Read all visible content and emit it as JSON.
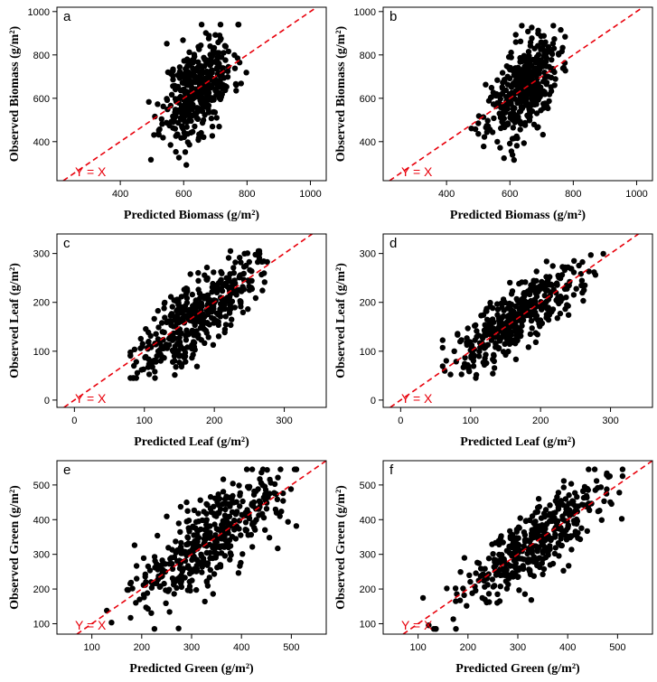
{
  "figure": {
    "ref_line_color": "#e8000b",
    "point_color": "#000000"
  },
  "chart_data": [
    {
      "type": "scatter",
      "panel": "a",
      "xlabel": "Predicted Biomass (g/m²)",
      "ylabel": "Observed Biomass (g/m²)",
      "xlim": [
        200,
        1050
      ],
      "ylim": [
        220,
        1020
      ],
      "xticks": [
        400,
        600,
        800,
        1000
      ],
      "yticks": [
        400,
        600,
        800,
        1000
      ],
      "annotation": "Y = X",
      "reference_line": "y = x",
      "grid": false,
      "x_center": 645,
      "x_sd": 55,
      "y_sd": 105,
      "slope": 1.0,
      "n": 420,
      "x_range": [
        400,
        800
      ],
      "y_range": [
        290,
        940
      ],
      "seed": 11
    },
    {
      "type": "scatter",
      "panel": "b",
      "xlabel": "Predicted Biomass (g/m²)",
      "ylabel": "Observed Biomass (g/m²)",
      "xlim": [
        200,
        1050
      ],
      "ylim": [
        220,
        1020
      ],
      "xticks": [
        400,
        600,
        800,
        1000
      ],
      "yticks": [
        400,
        600,
        800,
        1000
      ],
      "annotation": "Y = X",
      "reference_line": "y = x",
      "grid": false,
      "x_center": 640,
      "x_sd": 55,
      "y_sd": 100,
      "slope": 1.05,
      "n": 420,
      "x_range": [
        400,
        775
      ],
      "y_range": [
        290,
        935
      ],
      "seed": 23
    },
    {
      "type": "scatter",
      "panel": "c",
      "xlabel": "Predicted Leaf (g/m²)",
      "ylabel": "Observed Leaf (g/m²)",
      "xlim": [
        -25,
        360
      ],
      "ylim": [
        -15,
        340
      ],
      "xticks": [
        0,
        100,
        200,
        300
      ],
      "yticks": [
        0,
        100,
        200,
        300
      ],
      "annotation": "Y = X",
      "reference_line": "y = x",
      "grid": false,
      "x_center": 175,
      "x_sd": 42,
      "y_sd": 38,
      "slope": 1.05,
      "n": 420,
      "x_range": [
        80,
        280
      ],
      "y_range": [
        45,
        305
      ],
      "seed": 37
    },
    {
      "type": "scatter",
      "panel": "d",
      "xlabel": "Predicted Leaf (g/m²)",
      "ylabel": "Observed Leaf (g/m²)",
      "xlim": [
        -25,
        360
      ],
      "ylim": [
        -15,
        340
      ],
      "xticks": [
        0,
        100,
        200,
        300
      ],
      "yticks": [
        0,
        100,
        200,
        300
      ],
      "annotation": "Y = X",
      "reference_line": "y = x",
      "grid": false,
      "x_center": 170,
      "x_sd": 45,
      "y_sd": 32,
      "slope": 1.0,
      "n": 420,
      "x_range": [
        60,
        300
      ],
      "y_range": [
        45,
        305
      ],
      "seed": 51
    },
    {
      "type": "scatter",
      "panel": "e",
      "xlabel": "Predicted Green (g/m²)",
      "ylabel": "Observed Green (g/m²)",
      "xlim": [
        30,
        570
      ],
      "ylim": [
        70,
        570
      ],
      "xticks": [
        100,
        200,
        300,
        400,
        500
      ],
      "yticks": [
        100,
        200,
        300,
        400,
        500
      ],
      "annotation": "Y = X",
      "reference_line": "y = x",
      "grid": false,
      "x_center": 330,
      "x_sd": 70,
      "y_sd": 60,
      "slope": 1.0,
      "n": 420,
      "x_range": [
        130,
        510
      ],
      "y_range": [
        85,
        545
      ],
      "seed": 67
    },
    {
      "type": "scatter",
      "panel": "f",
      "xlabel": "Predicted Green (g/m²)",
      "ylabel": "Observed Green (g/m²)",
      "xlim": [
        30,
        570
      ],
      "ylim": [
        70,
        570
      ],
      "xticks": [
        100,
        200,
        300,
        400,
        500
      ],
      "yticks": [
        100,
        200,
        300,
        400,
        500
      ],
      "annotation": "Y = X",
      "reference_line": "y = x",
      "grid": false,
      "x_center": 330,
      "x_sd": 75,
      "y_sd": 50,
      "slope": 1.0,
      "n": 420,
      "x_range": [
        110,
        510
      ],
      "y_range": [
        85,
        545
      ],
      "seed": 83
    }
  ]
}
